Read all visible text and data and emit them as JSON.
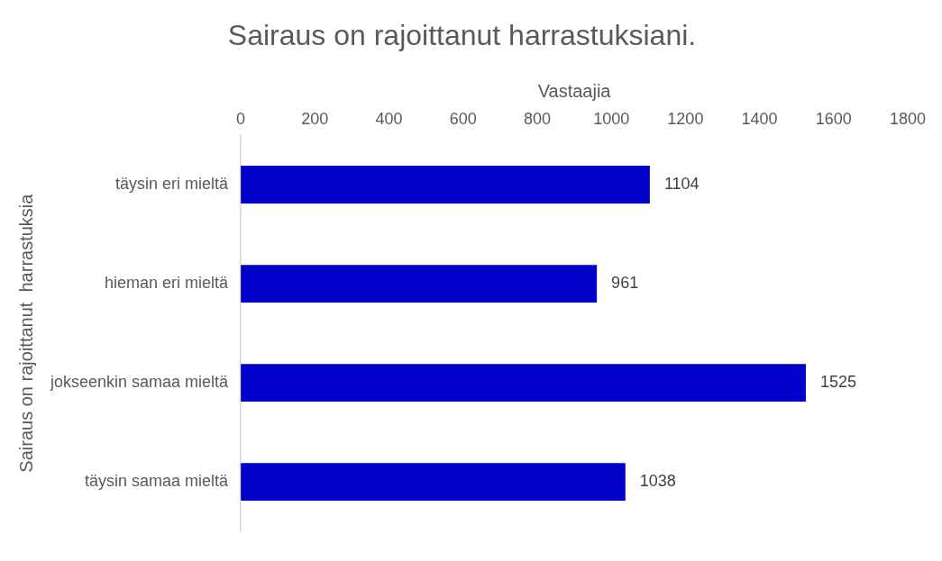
{
  "chart_data": {
    "type": "bar",
    "orientation": "horizontal",
    "title": "Sairaus on rajoittanut harrastuksiani.",
    "xlabel": "Vastaajia",
    "ylabel": "Sairaus on rajoittanut  harrastuksia",
    "categories": [
      "täysin eri mieltä",
      "hieman eri mieltä",
      "jokseenkin samaa mieltä",
      "täysin samaa mieltä"
    ],
    "values": [
      1104,
      961,
      1525,
      1038
    ],
    "color": "#0000c8",
    "xlim": [
      0,
      1800
    ],
    "xticks": [
      0,
      200,
      400,
      600,
      800,
      1000,
      1200,
      1400,
      1600,
      1800
    ],
    "data_labels": true
  }
}
